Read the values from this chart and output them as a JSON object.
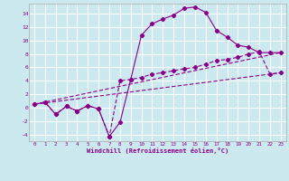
{
  "xlabel": "Windchill (Refroidissement éolien,°C)",
  "bg_color": "#cce9f0",
  "grid_color": "#ffffff",
  "line_color": "#880088",
  "xlim": [
    -0.5,
    23.5
  ],
  "ylim": [
    -5,
    15.5
  ],
  "xticks": [
    0,
    1,
    2,
    3,
    4,
    5,
    6,
    7,
    8,
    9,
    10,
    11,
    12,
    13,
    14,
    15,
    16,
    17,
    18,
    19,
    20,
    21,
    22,
    23
  ],
  "yticks": [
    -4,
    -2,
    0,
    2,
    4,
    6,
    8,
    10,
    12,
    14
  ],
  "line1_x": [
    0,
    1,
    2,
    3,
    4,
    5,
    6,
    7,
    8,
    9,
    10,
    11,
    12,
    13,
    14,
    15,
    16,
    17,
    18,
    19,
    20,
    21,
    22,
    23
  ],
  "line1_y": [
    0.5,
    0.8,
    -1.0,
    0.2,
    -0.5,
    0.3,
    -0.2,
    -4.3,
    -2.2,
    4.2,
    10.8,
    12.5,
    13.2,
    13.8,
    14.8,
    15.0,
    14.2,
    11.5,
    10.5,
    9.3,
    9.0,
    8.2,
    8.2,
    8.2
  ],
  "line2_x": [
    0,
    1,
    2,
    3,
    4,
    5,
    6,
    7,
    8,
    9,
    10,
    11,
    12,
    13,
    14,
    15,
    16,
    17,
    18,
    19,
    20,
    21,
    22,
    23
  ],
  "line2_y": [
    0.5,
    0.8,
    -1.0,
    0.2,
    -0.5,
    0.3,
    -0.2,
    -4.3,
    4.0,
    4.2,
    4.5,
    5.0,
    5.2,
    5.5,
    5.8,
    6.0,
    6.5,
    7.0,
    7.2,
    7.5,
    8.0,
    8.3,
    5.0,
    5.2
  ],
  "line3_x": [
    0,
    23
  ],
  "line3_y": [
    0.5,
    8.2
  ],
  "line4_x": [
    0,
    23
  ],
  "line4_y": [
    0.5,
    5.2
  ]
}
